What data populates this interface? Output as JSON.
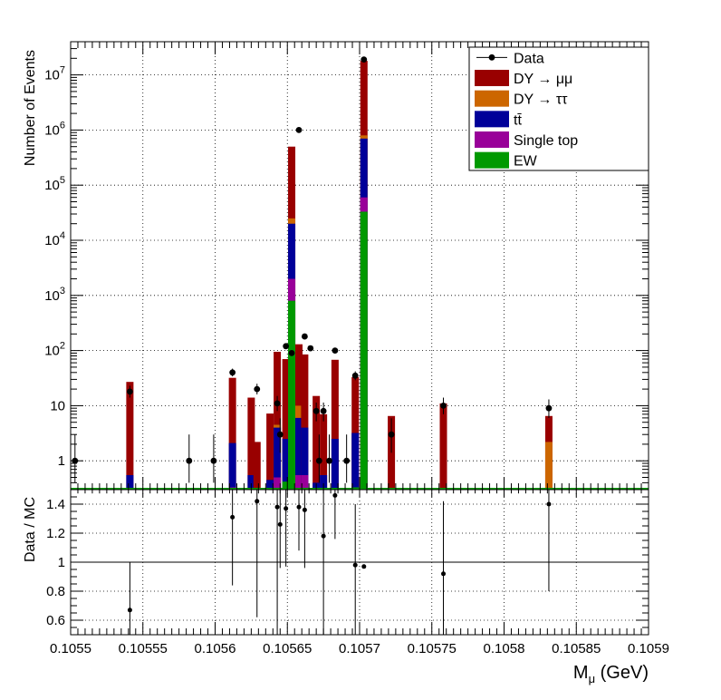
{
  "chart_data": [
    {
      "type": "bar",
      "stacked": true,
      "y_scale": "log",
      "ylabel": "Number of Events",
      "ylim": [
        0.3,
        40000000
      ],
      "xlim": [
        0.1055,
        0.1059
      ],
      "grid": true,
      "legend_position": "top-right",
      "legend": [
        {
          "key": "data",
          "label": "Data",
          "kind": "marker"
        },
        {
          "key": "dymumu",
          "label": "DY → μμ",
          "kind": "box"
        },
        {
          "key": "dytautau",
          "label": "DY → ττ",
          "kind": "box"
        },
        {
          "key": "ttbar",
          "label": "tt̄",
          "kind": "box"
        },
        {
          "key": "singletop",
          "label": "Single top",
          "kind": "box"
        },
        {
          "key": "ew",
          "label": "EW",
          "kind": "box"
        }
      ],
      "colors": {
        "dymumu": "#990000",
        "dytautau": "#cc6600",
        "ttbar": "#000099",
        "singletop": "#990099",
        "ew": "#009900",
        "data": "#000000"
      },
      "x_ticks": [
        {
          "value": 0.1055,
          "label": "0.1055"
        },
        {
          "value": 0.10555,
          "label": "0.10555"
        },
        {
          "value": 0.1056,
          "label": "0.1056"
        },
        {
          "value": 0.10565,
          "label": "0.10565"
        },
        {
          "value": 0.1057,
          "label": "0.1057"
        },
        {
          "value": 0.10575,
          "label": "0.10575"
        },
        {
          "value": 0.1058,
          "label": "0.1058"
        },
        {
          "value": 0.10585,
          "label": "0.10585"
        },
        {
          "value": 0.1059,
          "label": "0.1059"
        }
      ],
      "y_ticks": [
        {
          "value": 1,
          "label": "1"
        },
        {
          "value": 10,
          "label": "10"
        },
        {
          "value": 100,
          "label": "10",
          "exp": "2"
        },
        {
          "value": 1000,
          "label": "10",
          "exp": "3"
        },
        {
          "value": 10000,
          "label": "10",
          "exp": "4"
        },
        {
          "value": 100000,
          "label": "10",
          "exp": "5"
        },
        {
          "value": 1000000,
          "label": "10",
          "exp": "6"
        },
        {
          "value": 10000000,
          "label": "10",
          "exp": "7"
        }
      ],
      "bins": [
        {
          "x": 0.105541,
          "total": 27,
          "tt_top": 0.55,
          "ew": 0
        },
        {
          "x": 0.105612,
          "total": 32,
          "tt_top": 2.1,
          "st_top": 0.33,
          "ew": 0
        },
        {
          "x": 0.105625,
          "total": 14,
          "tt_top": 0.55,
          "ew": 0
        },
        {
          "x": 0.105629,
          "total": 2.2,
          "ew": 0
        },
        {
          "x": 0.105638,
          "total": 7.2,
          "tt_top": 0.45,
          "ew": 0
        },
        {
          "x": 0.105643,
          "total": 95,
          "tt_top": 4.0,
          "dytt_top": 4.5,
          "st_top": 0.5,
          "ew": 0
        },
        {
          "x": 0.105649,
          "total": 70,
          "tt_top": 2.5,
          "ew": 0.42
        },
        {
          "x": 0.105653,
          "total": 500000,
          "dytt_top": 25000,
          "tt_top": 20000,
          "st_top": 2000,
          "ew": 800
        },
        {
          "x": 0.105658,
          "total": 130,
          "dytt_top": 10,
          "tt_top": 6.0,
          "st_top": 0.55,
          "ew": 0
        },
        {
          "x": 0.105662,
          "total": 85,
          "tt_top": 4.0,
          "st_top": 0.55,
          "ew": 0
        },
        {
          "x": 0.10567,
          "total": 15,
          "tt_top": 0.4,
          "ew": 0
        },
        {
          "x": 0.105675,
          "total": 7.0,
          "tt_top": 0.55,
          "ew": 0
        },
        {
          "x": 0.105683,
          "total": 68,
          "tt_top": 2.5,
          "ew": 0
        },
        {
          "x": 0.105697,
          "total": 33,
          "tt_top": 3.2,
          "ew": 0.33
        },
        {
          "x": 0.105703,
          "total": 18000000,
          "dytt_top": 800000,
          "tt_top": 700000,
          "st_top": 60000,
          "ew": 33000
        },
        {
          "x": 0.105722,
          "total": 6.5,
          "ew": 0
        },
        {
          "x": 0.105758,
          "total": 11,
          "ew": 0
        },
        {
          "x": 0.105831,
          "total": 6.5,
          "dytt_top": 2.2,
          "ew": 0
        }
      ],
      "data_points": [
        {
          "x": 0.105503,
          "y": 1,
          "err_lo": 0.6,
          "err_hi": 2.0
        },
        {
          "x": 0.105541,
          "y": 18,
          "err_lo": 4,
          "err_hi": 5
        },
        {
          "x": 0.105582,
          "y": 1,
          "err_lo": 0.6,
          "err_hi": 2.0
        },
        {
          "x": 0.105599,
          "y": 1,
          "err_lo": 0.6,
          "err_hi": 2.0
        },
        {
          "x": 0.105612,
          "y": 40,
          "err_lo": 6,
          "err_hi": 7
        },
        {
          "x": 0.105629,
          "y": 20,
          "err_lo": 4,
          "err_hi": 5
        },
        {
          "x": 0.105643,
          "y": 11,
          "err_lo": 3,
          "err_hi": 4
        },
        {
          "x": 0.105645,
          "y": 3,
          "err_lo": 1.6,
          "err_hi": 2.9
        },
        {
          "x": 0.105649,
          "y": 120,
          "err_lo": 11,
          "err_hi": 12
        },
        {
          "x": 0.105653,
          "y": 90,
          "err_lo": 9,
          "err_hi": 10
        },
        {
          "x": 0.105658,
          "y": 1000000,
          "err_lo": 1000,
          "err_hi": 1000
        },
        {
          "x": 0.105662,
          "y": 180,
          "err_lo": 13,
          "err_hi": 14
        },
        {
          "x": 0.105666,
          "y": 110,
          "err_lo": 10,
          "err_hi": 11
        },
        {
          "x": 0.10567,
          "y": 8,
          "err_lo": 2.8,
          "err_hi": 3.4
        },
        {
          "x": 0.105672,
          "y": 1,
          "err_lo": 0.6,
          "err_hi": 2.0
        },
        {
          "x": 0.105675,
          "y": 8,
          "err_lo": 2.8,
          "err_hi": 3.4
        },
        {
          "x": 0.105679,
          "y": 1,
          "err_lo": 0.6,
          "err_hi": 2.0
        },
        {
          "x": 0.105683,
          "y": 100,
          "err_lo": 10,
          "err_hi": 11
        },
        {
          "x": 0.105691,
          "y": 1,
          "err_lo": 0.6,
          "err_hi": 2.0
        },
        {
          "x": 0.105697,
          "y": 35,
          "err_lo": 6,
          "err_hi": 7
        },
        {
          "x": 0.105703,
          "y": 19000000,
          "err_lo": 4000,
          "err_hi": 4000
        },
        {
          "x": 0.105722,
          "y": 3,
          "err_lo": 1.6,
          "err_hi": 2.9
        },
        {
          "x": 0.105758,
          "y": 10,
          "err_lo": 3,
          "err_hi": 4
        },
        {
          "x": 0.105831,
          "y": 9,
          "err_lo": 3,
          "err_hi": 4
        }
      ]
    },
    {
      "type": "scatter",
      "ylabel": "Data / MC",
      "xlabel": "Mμ (GeV)",
      "xlabel_main": "M",
      "xlabel_sub": "μ",
      "xlabel_unit": " (GeV)",
      "ylim": [
        0.5,
        1.5
      ],
      "xlim": [
        0.1055,
        0.1059
      ],
      "reference_line": 1,
      "y_ticks": [
        {
          "value": 0.6,
          "label": "0.6"
        },
        {
          "value": 0.8,
          "label": "0.8"
        },
        {
          "value": 1,
          "label": "1"
        },
        {
          "value": 1.2,
          "label": "1.2"
        },
        {
          "value": 1.4,
          "label": "1.4"
        }
      ],
      "points": [
        {
          "x": 0.105541,
          "y": 0.67,
          "err_lo": 0.3,
          "err_hi": 0.33
        },
        {
          "x": 0.105612,
          "y": 1.31,
          "err_lo": 0.47,
          "err_hi": 0.4
        },
        {
          "x": 0.105629,
          "y": 1.42,
          "err_lo": 0.8,
          "err_hi": 0.5
        },
        {
          "x": 0.105643,
          "y": 1.38,
          "err_lo": 0.9,
          "err_hi": 0.5
        },
        {
          "x": 0.105645,
          "y": 1.26,
          "err_lo": 0.3,
          "err_hi": 0.4
        },
        {
          "x": 0.105649,
          "y": 1.37,
          "err_lo": 0.4,
          "err_hi": 0.35
        },
        {
          "x": 0.105658,
          "y": 1.38,
          "err_lo": 0.3,
          "err_hi": 0.3
        },
        {
          "x": 0.105662,
          "y": 1.36,
          "err_lo": 0.4,
          "err_hi": 0.3
        },
        {
          "x": 0.105675,
          "y": 1.18,
          "err_lo": 0.7,
          "err_hi": 0.4
        },
        {
          "x": 0.105683,
          "y": 1.46,
          "err_lo": 0.3,
          "err_hi": 0.3
        },
        {
          "x": 0.105697,
          "y": 0.98,
          "err_lo": 0.6,
          "err_hi": 0.42
        },
        {
          "x": 0.105703,
          "y": 0.97,
          "err_lo": 0.0,
          "err_hi": 0.0
        },
        {
          "x": 0.105758,
          "y": 0.92,
          "err_lo": 0.6,
          "err_hi": 0.5
        },
        {
          "x": 0.105831,
          "y": 1.4,
          "err_lo": 0.6,
          "err_hi": 0.4
        }
      ]
    }
  ]
}
